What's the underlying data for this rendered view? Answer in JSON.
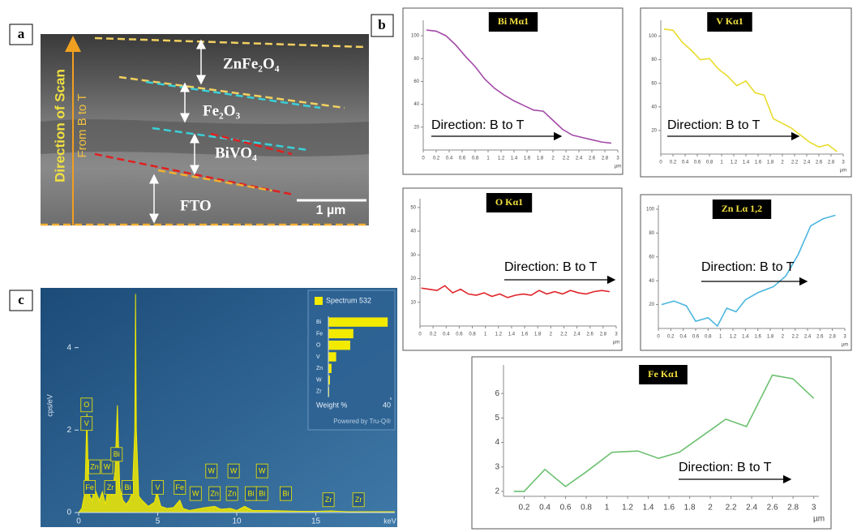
{
  "panel_a": {
    "label": "a",
    "scan_title": "Direction of Scan",
    "scan_subtitle": "From B to T",
    "layers": [
      "ZnFe₂O₄",
      "Fe₂O₃",
      "BiVO₄",
      "FTO"
    ],
    "scale_bar": "1 µm"
  },
  "panel_b": {
    "label": "b"
  },
  "panel_c": {
    "label": "c"
  },
  "chart_data": [
    {
      "type": "line",
      "title": "Bi Mα1",
      "annotation": "Direction: B to T",
      "xlabel": "µm",
      "x": [
        0.05,
        0.2,
        0.35,
        0.5,
        0.65,
        0.8,
        0.95,
        1.1,
        1.25,
        1.4,
        1.55,
        1.7,
        1.85,
        2.0,
        2.15,
        2.3,
        2.45,
        2.6,
        2.75,
        2.9
      ],
      "series": [
        {
          "color": "#a24aa6",
          "values": [
            105,
            104,
            100,
            92,
            82,
            73,
            62,
            54,
            48,
            43,
            39,
            35,
            34,
            26,
            18,
            13,
            11,
            9,
            7,
            6
          ]
        }
      ],
      "xlim": [
        0,
        3
      ],
      "xticks": [
        0,
        0.2,
        0.4,
        0.6,
        0.8,
        1,
        1.2,
        1.4,
        1.6,
        1.8,
        2,
        2.2,
        2.4,
        2.6,
        2.8,
        3
      ],
      "ylim": [
        0,
        110
      ],
      "yticks": [
        20,
        40,
        60,
        80,
        100
      ]
    },
    {
      "type": "line",
      "title": "V Kα1",
      "annotation": "Direction: B to T",
      "xlabel": "µm",
      "x": [
        0.05,
        0.2,
        0.35,
        0.5,
        0.65,
        0.8,
        0.95,
        1.1,
        1.25,
        1.4,
        1.55,
        1.7,
        1.85,
        2.0,
        2.15,
        2.3,
        2.45,
        2.6,
        2.75,
        2.9
      ],
      "series": [
        {
          "color": "#e8dc2a",
          "values": [
            106,
            105,
            95,
            88,
            80,
            81,
            72,
            66,
            58,
            62,
            52,
            50,
            30,
            26,
            22,
            16,
            10,
            6,
            8,
            2
          ]
        }
      ],
      "xlim": [
        0,
        3
      ],
      "xticks": [
        0,
        0.2,
        0.4,
        0.6,
        0.8,
        1,
        1.2,
        1.4,
        1.6,
        1.8,
        2,
        2.2,
        2.4,
        2.6,
        2.8,
        3
      ],
      "ylim": [
        0,
        110
      ],
      "yticks": [
        20,
        40,
        60,
        80,
        100
      ]
    },
    {
      "type": "line",
      "title": "O Kα1",
      "annotation": "Direction: B to T",
      "xlabel": "µm",
      "x": [
        0.02,
        0.14,
        0.26,
        0.38,
        0.5,
        0.62,
        0.74,
        0.86,
        0.98,
        1.1,
        1.22,
        1.34,
        1.46,
        1.58,
        1.7,
        1.82,
        1.94,
        2.06,
        2.18,
        2.3,
        2.42,
        2.54,
        2.66,
        2.78,
        2.9
      ],
      "series": [
        {
          "color": "#e0242a",
          "values": [
            16,
            15.5,
            15,
            17,
            14,
            15.5,
            13.5,
            13,
            14,
            12.5,
            13.5,
            12,
            13,
            13.5,
            13,
            15,
            13.5,
            14.5,
            13.5,
            15,
            14,
            13.5,
            14.5,
            15,
            14.5
          ]
        }
      ],
      "xlim": [
        0,
        3
      ],
      "xticks": [
        0,
        0.2,
        0.4,
        0.6,
        0.8,
        1,
        1.2,
        1.4,
        1.6,
        1.8,
        2,
        2.2,
        2.4,
        2.6,
        2.8,
        3
      ],
      "ylim": [
        0,
        52
      ],
      "yticks": [
        10,
        20,
        30,
        40,
        50
      ]
    },
    {
      "type": "line",
      "title": "Zn Lα 1,2",
      "annotation": "Direction: B to T",
      "xlabel": "µm",
      "x": [
        0.05,
        0.25,
        0.45,
        0.6,
        0.8,
        0.95,
        1.1,
        1.25,
        1.4,
        1.6,
        1.85,
        2.05,
        2.25,
        2.45,
        2.65,
        2.85
      ],
      "series": [
        {
          "color": "#4cb6de",
          "values": [
            20,
            23,
            19,
            6,
            9,
            2,
            17,
            14,
            24,
            30,
            35,
            44,
            62,
            86,
            92,
            95
          ]
        }
      ],
      "xlim": [
        0,
        3
      ],
      "xticks": [
        0,
        0.2,
        0.4,
        0.6,
        0.8,
        1,
        1.2,
        1.4,
        1.6,
        1.8,
        2,
        2.2,
        2.4,
        2.6,
        2.8,
        3
      ],
      "ylim": [
        0,
        100
      ],
      "yticks": [
        20,
        40,
        60,
        80,
        100
      ]
    },
    {
      "type": "line",
      "title": "Fe Kα1",
      "annotation": "Direction: B to T",
      "xlabel": "µm",
      "x": [
        0.1,
        0.2,
        0.4,
        0.6,
        0.8,
        1.05,
        1.3,
        1.5,
        1.7,
        1.9,
        2.15,
        2.35,
        2.6,
        2.8,
        3.0
      ],
      "series": [
        {
          "color": "#6cc070",
          "values": [
            2.0,
            2.0,
            2.9,
            2.2,
            2.8,
            3.6,
            3.65,
            3.35,
            3.6,
            4.2,
            4.95,
            4.65,
            6.75,
            6.6,
            5.8
          ]
        }
      ],
      "xlim": [
        0,
        3.05
      ],
      "xticks": [
        0.2,
        0.4,
        0.6,
        0.8,
        1,
        1.2,
        1.4,
        1.6,
        1.8,
        2,
        2.2,
        2.4,
        2.6,
        2.8,
        3
      ],
      "ylim": [
        1.8,
        7
      ],
      "yticks": [
        2,
        3,
        4,
        5,
        6
      ]
    },
    {
      "type": "area",
      "xlabel": "keV",
      "ylabel": "cps/eV",
      "x": [
        0,
        0.2,
        0.3,
        0.4,
        0.52,
        0.6,
        0.7,
        0.85,
        1.0,
        1.1,
        1.3,
        1.5,
        1.7,
        1.9,
        2.1,
        2.3,
        2.45,
        2.6,
        2.8,
        3.0,
        3.2,
        3.4,
        3.55,
        3.6,
        3.65,
        3.8,
        4.0,
        4.4,
        4.8,
        4.95,
        5.2,
        5.6,
        6.0,
        6.4,
        6.6,
        7.0,
        8.0,
        8.6,
        9.0,
        9.6,
        10.0,
        10.5,
        11.0,
        12.0,
        13.0,
        14.0,
        15.0,
        16.0,
        17.0,
        18.0,
        20.0
      ],
      "series": [
        {
          "color": "#f2ea00",
          "values": [
            0,
            0.1,
            0.3,
            0.5,
            2.4,
            1.0,
            0.4,
            0.3,
            0.6,
            0.5,
            0.3,
            0.5,
            0.2,
            0.7,
            0.4,
            1.0,
            2.6,
            0.6,
            0.3,
            0.2,
            0.3,
            0.5,
            2.0,
            5.3,
            2.0,
            0.4,
            0.3,
            0.15,
            0.25,
            0.5,
            0.15,
            0.1,
            0.12,
            0.3,
            0.1,
            0.05,
            0.12,
            0.15,
            0.08,
            0.1,
            0.05,
            0.15,
            0.05,
            0.05,
            0.04,
            0.03,
            0.03,
            0.04,
            0.02,
            0.02,
            0.02
          ]
        }
      ],
      "peak_labels": [
        {
          "label": "O",
          "x": 0.5,
          "y": 2.6
        },
        {
          "label": "V",
          "x": 0.5,
          "y": 2.15
        },
        {
          "label": "Zn",
          "x": 1.0,
          "y": 1.1
        },
        {
          "label": "W",
          "x": 1.8,
          "y": 1.1
        },
        {
          "label": "Bi",
          "x": 2.4,
          "y": 1.4
        },
        {
          "label": "Fe",
          "x": 0.7,
          "y": 0.6
        },
        {
          "label": "Zr",
          "x": 2.0,
          "y": 0.6
        },
        {
          "label": "Bi",
          "x": 3.1,
          "y": 0.6
        },
        {
          "label": "V",
          "x": 5.0,
          "y": 0.6
        },
        {
          "label": "Fe",
          "x": 6.4,
          "y": 0.6
        },
        {
          "label": "W",
          "x": 7.4,
          "y": 0.45
        },
        {
          "label": "W",
          "x": 8.4,
          "y": 1.0
        },
        {
          "label": "Zn",
          "x": 8.6,
          "y": 0.45
        },
        {
          "label": "W",
          "x": 9.8,
          "y": 1.0
        },
        {
          "label": "Zn",
          "x": 9.7,
          "y": 0.45
        },
        {
          "label": "Bi",
          "x": 10.9,
          "y": 0.45
        },
        {
          "label": "W",
          "x": 11.6,
          "y": 1.0
        },
        {
          "label": "Bi",
          "x": 11.6,
          "y": 0.45
        },
        {
          "label": "Bi",
          "x": 13.1,
          "y": 0.45
        },
        {
          "label": "Zr",
          "x": 15.8,
          "y": 0.3
        },
        {
          "label": "Zr",
          "x": 17.7,
          "y": 0.3
        }
      ],
      "xlim": [
        0,
        20
      ],
      "xticks": [
        0,
        5,
        10,
        15
      ],
      "ylim": [
        0,
        5.35
      ],
      "yticks": [
        0,
        2,
        4
      ]
    },
    {
      "type": "hbar",
      "xlabel": "Weight %",
      "footnote": "Powered by Tru-Q®",
      "categories": [
        "Bi",
        "Fe",
        "O",
        "V",
        "Zn",
        "W",
        "Zr"
      ],
      "series": [
        {
          "name": "Spectrum 532",
          "color": "#f2ea00",
          "values": [
            38,
            16,
            14,
            5,
            2,
            1,
            0.5
          ]
        }
      ],
      "xlim": [
        0,
        40
      ],
      "xticks": [
        40
      ]
    }
  ]
}
